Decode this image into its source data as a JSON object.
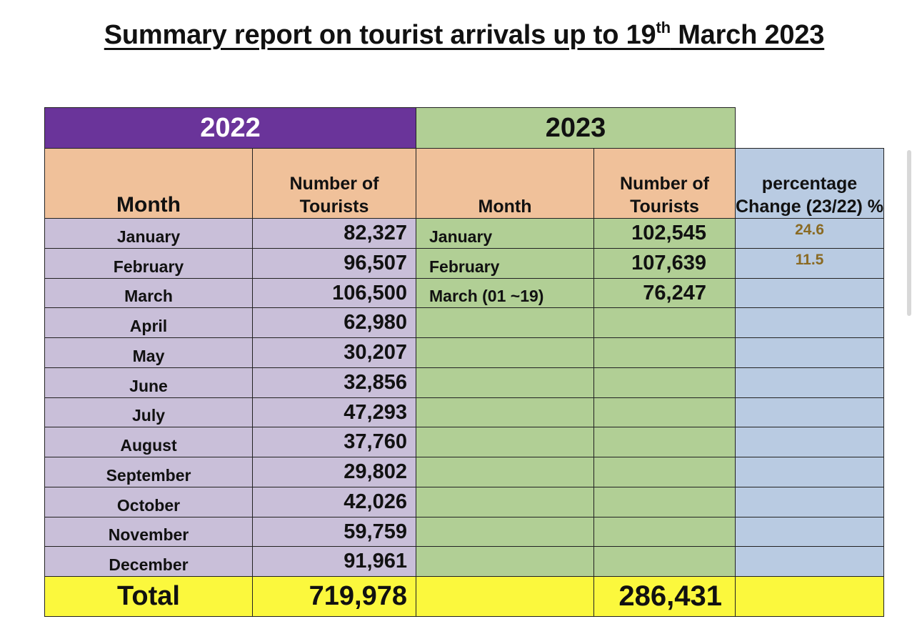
{
  "title": {
    "prefix": "Summary report on tourist arrivals up to 19",
    "sup": "th",
    "suffix": " March 2023"
  },
  "headers": {
    "year_2022": "2022",
    "year_2023": "2023",
    "month_2022": "Month",
    "tourists_2022": "Number of Tourists",
    "month_2023": "Month",
    "tourists_2023": "Number of Tourists",
    "pct": "percentage Change (23/22) %"
  },
  "rows": [
    {
      "m22": "January",
      "n22": "82,327",
      "m23": "January",
      "n23": "102,545",
      "pct": "24.6"
    },
    {
      "m22": "February",
      "n22": "96,507",
      "m23": "February",
      "n23": "107,639",
      "pct": "11.5"
    },
    {
      "m22": "March",
      "n22": "106,500",
      "m23": "March (01 ~19)",
      "n23": "76,247",
      "pct": ""
    },
    {
      "m22": "April",
      "n22": "62,980",
      "m23": "",
      "n23": "",
      "pct": ""
    },
    {
      "m22": "May",
      "n22": "30,207",
      "m23": "",
      "n23": "",
      "pct": ""
    },
    {
      "m22": "June",
      "n22": "32,856",
      "m23": "",
      "n23": "",
      "pct": ""
    },
    {
      "m22": "July",
      "n22": "47,293",
      "m23": "",
      "n23": "",
      "pct": ""
    },
    {
      "m22": "August",
      "n22": "37,760",
      "m23": "",
      "n23": "",
      "pct": ""
    },
    {
      "m22": "September",
      "n22": "29,802",
      "m23": "",
      "n23": "",
      "pct": ""
    },
    {
      "m22": "October",
      "n22": "42,026",
      "m23": "",
      "n23": "",
      "pct": ""
    },
    {
      "m22": "November",
      "n22": "59,759",
      "m23": "",
      "n23": "",
      "pct": ""
    },
    {
      "m22": "December",
      "n22": "91,961",
      "m23": "",
      "n23": "",
      "pct": ""
    }
  ],
  "totals": {
    "label": "Total",
    "total_2022": "719,978",
    "total_2023": "286,431"
  },
  "colors": {
    "year_2022_bg": "#6a349a",
    "year_2023_bg": "#b1cf95",
    "header_bg": "#f0c19a",
    "pct_bg": "#b9cbe2",
    "rows_2022_bg": "#c9bfd9",
    "total_bg": "#fbf83d",
    "pct_text": "#8a6a23"
  }
}
